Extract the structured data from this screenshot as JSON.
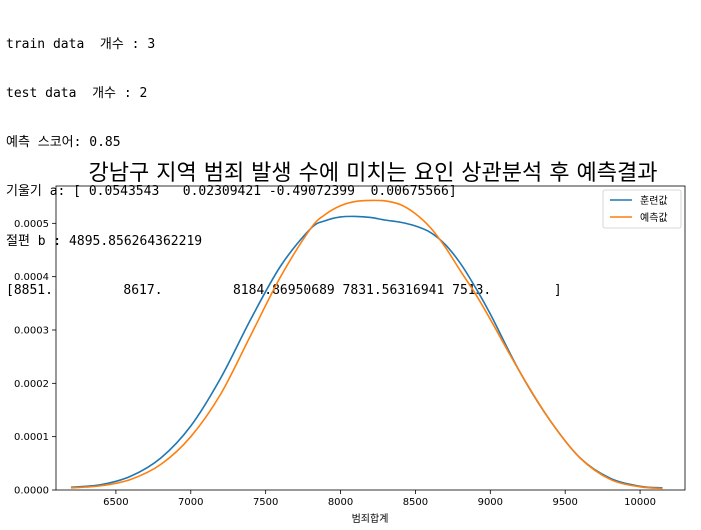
{
  "console": {
    "lines": [
      "train data  개수 : 3",
      "test data  개수 : 2",
      "예측 스코어: 0.85",
      "기울기 a: [ 0.0543543   0.02309421 -0.49072399  0.00675566]",
      "절편 b : 4895.856264362219",
      "[8851.         8617.         8184.86950689 7831.56316941 7513.        ]"
    ]
  },
  "chart_data": {
    "type": "line",
    "title": "강남구 지역 범죄 발생 수에 미치는 요인 상관분석 후 예측결과",
    "xlabel": "범죄합계",
    "ylabel": "",
    "xlim": [
      6100,
      10300
    ],
    "ylim": [
      0,
      0.00057
    ],
    "xticks": [
      "6500",
      "7000",
      "7500",
      "8000",
      "8500",
      "9000",
      "9500",
      "10000"
    ],
    "yticks": [
      "0.0000",
      "0.0001",
      "0.0002",
      "0.0003",
      "0.0004",
      "0.0005"
    ],
    "legend_position": "top-right",
    "grid": false,
    "series": [
      {
        "name": "훈련값",
        "color": "#1f77b4",
        "x": [
          6200,
          6400,
          6600,
          6800,
          7000,
          7200,
          7400,
          7600,
          7800,
          7900,
          8000,
          8100,
          8200,
          8300,
          8400,
          8500,
          8600,
          8700,
          8800,
          8900,
          9000,
          9200,
          9400,
          9600,
          9800,
          10000,
          10150
        ],
        "y": [
          5e-06,
          1e-05,
          2.6e-05,
          6e-05,
          0.00012,
          0.00021,
          0.00032,
          0.00042,
          0.00049,
          0.000505,
          0.000512,
          0.000513,
          0.000511,
          0.000506,
          0.000502,
          0.000495,
          0.000483,
          0.00046,
          0.000425,
          0.00038,
          0.00033,
          0.00022,
          0.00013,
          6e-05,
          2.2e-05,
          7e-06,
          4e-06
        ]
      },
      {
        "name": "예측값",
        "color": "#ff7f0e",
        "x": [
          6200,
          6400,
          6600,
          6800,
          7000,
          7200,
          7400,
          7600,
          7800,
          7900,
          8000,
          8100,
          8200,
          8300,
          8400,
          8500,
          8600,
          8700,
          8800,
          8900,
          9000,
          9200,
          9400,
          9600,
          9800,
          10000,
          10150
        ],
        "y": [
          4e-06,
          8e-06,
          2e-05,
          4.8e-05,
          0.0001,
          0.00018,
          0.00029,
          0.0004,
          0.00049,
          0.000517,
          0.000533,
          0.000541,
          0.000543,
          0.000542,
          0.000535,
          0.000518,
          0.000492,
          0.000455,
          0.000411,
          0.000368,
          0.00032,
          0.00022,
          0.00013,
          6e-05,
          2e-05,
          6e-06,
          3e-06
        ]
      }
    ]
  }
}
